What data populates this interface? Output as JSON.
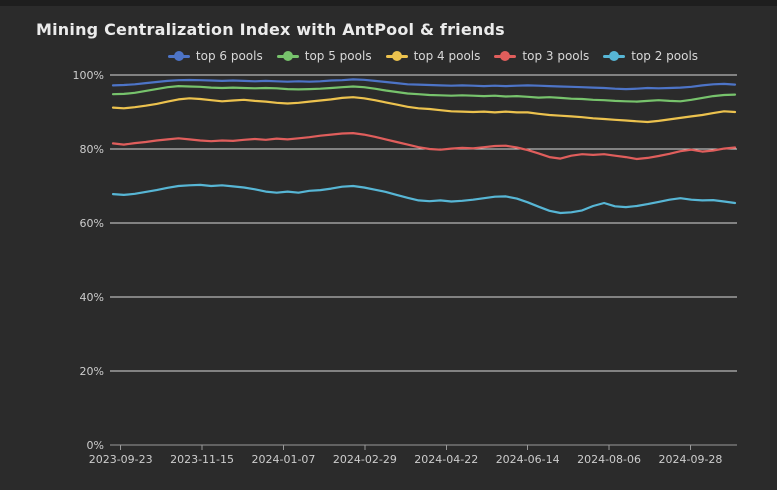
{
  "title": "Mining Centralization Index with AntPool & friends",
  "chart_data": {
    "type": "line",
    "title": "Mining Centralization Index with AntPool & friends",
    "xlabel": "",
    "ylabel": "",
    "ylim": [
      0,
      100
    ],
    "grid": true,
    "legend_position": "top",
    "background_color": "#2b2b2b",
    "gridline_color": "#d9d9d9",
    "axis_color": "#999999",
    "label_color": "#cdcdcd",
    "y_ticks": [
      {
        "label": "100%",
        "value": 100
      },
      {
        "label": "80%",
        "value": 80
      },
      {
        "label": "60%",
        "value": 60
      },
      {
        "label": "40%",
        "value": 40
      },
      {
        "label": "20%",
        "value": 20
      },
      {
        "label": "0%",
        "value": 0
      }
    ],
    "x_ticks": [
      "2023-09-23",
      "2023-11-15",
      "2024-01-07",
      "2024-02-29",
      "2024-04-22",
      "2024-06-14",
      "2024-08-06",
      "2024-09-28"
    ],
    "x_tick_interval_days": 53,
    "x_range_days": 405,
    "x_first_tick_offset_days": 5,
    "series": [
      {
        "name": "top 6 pools",
        "color": "#4d74c7",
        "values": [
          97.2,
          97.3,
          97.5,
          97.8,
          98.1,
          98.4,
          98.6,
          98.65,
          98.6,
          98.5,
          98.4,
          98.5,
          98.4,
          98.3,
          98.4,
          98.3,
          98.2,
          98.3,
          98.2,
          98.3,
          98.5,
          98.6,
          98.8,
          98.7,
          98.4,
          98.1,
          97.8,
          97.5,
          97.4,
          97.3,
          97.2,
          97.1,
          97.2,
          97.1,
          97.0,
          97.1,
          97.0,
          97.1,
          97.2,
          97.1,
          97.0,
          96.9,
          96.8,
          96.7,
          96.6,
          96.5,
          96.3,
          96.2,
          96.3,
          96.5,
          96.4,
          96.5,
          96.6,
          96.8,
          97.2,
          97.5,
          97.6,
          97.4
        ]
      },
      {
        "name": "top 5 pools",
        "color": "#77c36c",
        "values": [
          94.8,
          94.9,
          95.2,
          95.7,
          96.2,
          96.7,
          97.0,
          96.9,
          96.8,
          96.6,
          96.5,
          96.6,
          96.5,
          96.4,
          96.5,
          96.4,
          96.2,
          96.1,
          96.2,
          96.3,
          96.5,
          96.7,
          96.9,
          96.7,
          96.3,
          95.8,
          95.4,
          95.0,
          94.8,
          94.6,
          94.5,
          94.4,
          94.5,
          94.4,
          94.3,
          94.4,
          94.2,
          94.3,
          94.1,
          93.9,
          94.0,
          93.8,
          93.6,
          93.5,
          93.3,
          93.2,
          93.0,
          92.9,
          92.8,
          93.0,
          93.2,
          93.0,
          92.9,
          93.3,
          93.8,
          94.3,
          94.6,
          94.7
        ]
      },
      {
        "name": "top 4 pools",
        "color": "#ecc24e",
        "values": [
          91.2,
          91.0,
          91.3,
          91.7,
          92.2,
          92.8,
          93.4,
          93.7,
          93.5,
          93.2,
          92.9,
          93.1,
          93.3,
          93.0,
          92.8,
          92.5,
          92.3,
          92.5,
          92.8,
          93.1,
          93.4,
          93.8,
          94.0,
          93.7,
          93.2,
          92.6,
          92.0,
          91.4,
          91.0,
          90.8,
          90.5,
          90.2,
          90.1,
          90.0,
          90.1,
          89.9,
          90.1,
          89.9,
          89.9,
          89.5,
          89.2,
          89.0,
          88.8,
          88.6,
          88.3,
          88.1,
          87.9,
          87.7,
          87.5,
          87.3,
          87.6,
          88.0,
          88.4,
          88.8,
          89.2,
          89.7,
          90.2,
          90.0
        ]
      },
      {
        "name": "top 3 pools",
        "color": "#e05e5c",
        "values": [
          81.5,
          81.2,
          81.6,
          81.9,
          82.3,
          82.6,
          82.9,
          82.6,
          82.3,
          82.1,
          82.3,
          82.2,
          82.5,
          82.7,
          82.5,
          82.8,
          82.6,
          82.9,
          83.2,
          83.6,
          83.9,
          84.2,
          84.3,
          83.9,
          83.3,
          82.6,
          81.9,
          81.2,
          80.5,
          80.0,
          79.8,
          80.1,
          80.3,
          80.2,
          80.5,
          80.8,
          80.9,
          80.4,
          79.7,
          78.8,
          77.8,
          77.4,
          78.2,
          78.6,
          78.4,
          78.6,
          78.2,
          77.8,
          77.3,
          77.6,
          78.1,
          78.7,
          79.4,
          79.8,
          79.3,
          79.6,
          80.1,
          80.4
        ]
      },
      {
        "name": "top 2 pools",
        "color": "#57b6d5",
        "values": [
          67.8,
          67.6,
          67.9,
          68.4,
          68.9,
          69.5,
          70.0,
          70.2,
          70.3,
          70.0,
          70.2,
          69.9,
          69.6,
          69.1,
          68.5,
          68.2,
          68.5,
          68.2,
          68.7,
          68.9,
          69.3,
          69.8,
          70.0,
          69.6,
          69.0,
          68.4,
          67.6,
          66.8,
          66.1,
          65.9,
          66.1,
          65.8,
          66.0,
          66.3,
          66.7,
          67.1,
          67.2,
          66.6,
          65.6,
          64.4,
          63.3,
          62.7,
          62.9,
          63.4,
          64.6,
          65.4,
          64.5,
          64.3,
          64.6,
          65.1,
          65.7,
          66.3,
          66.7,
          66.3,
          66.1,
          66.2,
          65.8,
          65.4
        ]
      }
    ]
  }
}
